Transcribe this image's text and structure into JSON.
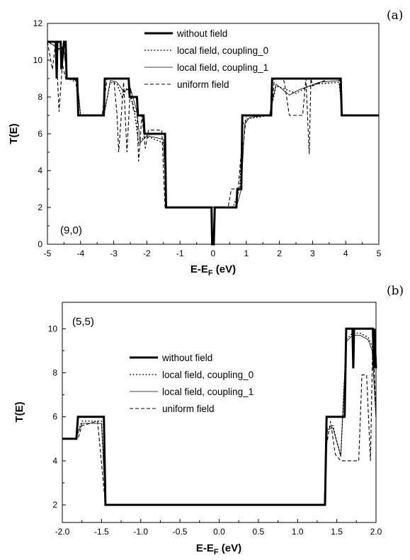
{
  "chart_data": [
    {
      "type": "line",
      "panel_label": "(a)",
      "annotation": "(9,0)",
      "xlabel": "E-E",
      "xlabel_sub": "F",
      "xlabel_unit": " (eV)",
      "ylabel": "T(E)",
      "xlim": [
        -5,
        5
      ],
      "ylim": [
        0,
        12
      ],
      "xticks": [
        -5,
        -4,
        -3,
        -2,
        -1,
        0,
        1,
        2,
        3,
        4,
        5
      ],
      "xtick_labels": [
        "-5",
        "-4",
        "-3",
        "-2",
        "-1",
        "0",
        "1",
        "2",
        "3",
        "4",
        "5"
      ],
      "yticks": [
        0,
        2,
        4,
        6,
        8,
        10,
        12
      ],
      "ytick_labels": [
        "0",
        "2",
        "4",
        "6",
        "8",
        "10",
        "12"
      ],
      "legend": "top-center",
      "series": [
        {
          "name": "without field",
          "style": "thick",
          "x": [
            -5,
            -4.75,
            -4.72,
            -4.7,
            -4.6,
            -4.58,
            -4.5,
            -4.45,
            -4.42,
            -4.1,
            -4.07,
            -3.3,
            -3.27,
            -2.55,
            -2.52,
            -2.3,
            -2.27,
            -2.1,
            -2.07,
            -1.45,
            -1.42,
            -0.05,
            -0.03,
            0.0,
            0.02,
            0.05,
            0.7,
            0.73,
            0.85,
            0.88,
            1.75,
            1.78,
            3.85,
            3.88,
            5
          ],
          "y": [
            11,
            11,
            9,
            11,
            11,
            9.5,
            11,
            11,
            9,
            9,
            7,
            7,
            9,
            9,
            8,
            8,
            7,
            7,
            6,
            6,
            2,
            2,
            0,
            0,
            0,
            2,
            2,
            3,
            3,
            7,
            7,
            9,
            9,
            7,
            7
          ]
        },
        {
          "name": "local field, coupling_0",
          "style": "dotted",
          "x": [
            -5,
            -4.8,
            -4.7,
            -4.6,
            -4.5,
            -4.4,
            -4.1,
            -4.0,
            -3.3,
            -3.1,
            -2.9,
            -2.75,
            -2.6,
            -2.4,
            -2.25,
            -2.1,
            -1.9,
            -1.5,
            -1.4,
            -0.05,
            0.05,
            0.6,
            0.8,
            0.9,
            1.0,
            1.7,
            1.9,
            2.2,
            2.5,
            2.8,
            3.1,
            3.8,
            3.9,
            5
          ],
          "y": [
            11,
            10.8,
            10.5,
            10.8,
            10.5,
            9,
            8.8,
            7,
            7,
            8.8,
            8.7,
            8,
            8.5,
            7.5,
            5.5,
            5.8,
            5.8,
            5.5,
            2,
            2,
            2,
            2,
            3,
            6.5,
            6.8,
            7,
            8.6,
            8.4,
            8.2,
            8.5,
            8.7,
            8.8,
            7,
            7
          ]
        },
        {
          "name": "local field, coupling_1",
          "style": "thin",
          "x": [
            -5,
            -4.8,
            -4.7,
            -4.6,
            -4.5,
            -4.4,
            -4.1,
            -4.0,
            -3.3,
            -3.1,
            -2.9,
            -2.7,
            -2.5,
            -2.3,
            -2.2,
            -2.0,
            -1.5,
            -1.4,
            -0.05,
            0.05,
            0.7,
            0.85,
            0.95,
            1.1,
            1.7,
            1.9,
            2.3,
            2.6,
            2.9,
            3.2,
            3.85,
            3.9,
            5
          ],
          "y": [
            11,
            10.8,
            10.5,
            10.7,
            10.5,
            9,
            8.9,
            7,
            7,
            8.9,
            8.8,
            8.3,
            8.5,
            7.2,
            5.5,
            5.9,
            5.7,
            2,
            2,
            2,
            2,
            3,
            6.5,
            6.9,
            7,
            8.7,
            8.1,
            8.4,
            8.6,
            8.8,
            8.9,
            7,
            7
          ]
        },
        {
          "name": "uniform field",
          "style": "dashed",
          "x": [
            -5,
            -4.85,
            -4.75,
            -4.65,
            -4.55,
            -4.45,
            -4.35,
            -4.15,
            -4.05,
            -3.35,
            -3.2,
            -3.0,
            -2.9,
            -2.85,
            -2.7,
            -2.6,
            -2.5,
            -2.4,
            -2.3,
            -2.25,
            -2.15,
            -2.05,
            -1.95,
            -1.55,
            -1.45,
            -0.05,
            0.05,
            0.45,
            0.55,
            0.75,
            0.85,
            0.9,
            1.0,
            1.75,
            1.85,
            2.1,
            2.15,
            2.3,
            2.4,
            2.7,
            2.8,
            2.9,
            2.95,
            3.0,
            3.5,
            3.8,
            3.9,
            5
          ],
          "y": [
            11,
            9.5,
            11,
            7.2,
            9.8,
            9,
            9,
            9,
            7,
            7,
            9,
            9,
            7,
            5,
            8.8,
            5,
            8.5,
            7.2,
            7.2,
            4.5,
            7,
            5.2,
            6.2,
            6.2,
            2,
            2,
            2,
            2,
            3,
            3,
            5,
            5.2,
            7,
            7,
            9,
            9,
            8.8,
            7,
            7,
            7,
            9,
            4.9,
            9,
            8.6,
            9,
            9,
            7,
            7
          ]
        }
      ]
    },
    {
      "type": "line",
      "panel_label": "(b)",
      "annotation": "(5,5)",
      "xlabel": "E-E",
      "xlabel_sub": "F",
      "xlabel_unit": " (eV)",
      "ylabel": "T(E)",
      "xlim": [
        -2.0,
        2.0
      ],
      "ylim": [
        1.2,
        11.2
      ],
      "xticks": [
        -2.0,
        -1.5,
        -1.0,
        -0.5,
        0.0,
        0.5,
        1.0,
        1.5,
        2.0
      ],
      "xtick_labels": [
        "-2.0",
        "-1.5",
        "-1.0",
        "-0.5",
        "0.0",
        "0.5",
        "1.0",
        "1.5",
        "2.0"
      ],
      "yticks": [
        2,
        4,
        6,
        8,
        10
      ],
      "ytick_labels": [
        "2",
        "4",
        "6",
        "8",
        "10"
      ],
      "legend": "center",
      "series": [
        {
          "name": "without field",
          "style": "thick",
          "x": [
            -2.0,
            -1.82,
            -1.8,
            -1.47,
            -1.45,
            1.35,
            1.37,
            1.6,
            1.62,
            1.7,
            1.71,
            1.72,
            1.73,
            1.96,
            1.97,
            1.98,
            1.99,
            2.0
          ],
          "y": [
            5,
            5,
            6,
            6,
            2,
            2,
            6,
            6,
            10,
            10,
            8.2,
            10,
            10,
            10,
            8.2,
            10,
            9,
            8.2
          ]
        },
        {
          "name": "local field, coupling_0",
          "style": "dotted",
          "x": [
            -2.0,
            -1.83,
            -1.75,
            -1.5,
            -1.45,
            1.34,
            1.38,
            1.45,
            1.55,
            1.62,
            1.7,
            1.8,
            1.9,
            1.95,
            2.0
          ],
          "y": [
            5,
            5,
            5.8,
            5.8,
            2,
            2,
            5.5,
            5.6,
            4.2,
            9.5,
            9.8,
            9.8,
            9.6,
            9.2,
            6
          ]
        },
        {
          "name": "local field, coupling_1",
          "style": "thin",
          "x": [
            -2.0,
            -1.83,
            -1.75,
            -1.5,
            -1.45,
            1.34,
            1.38,
            1.45,
            1.55,
            1.62,
            1.7,
            1.8,
            1.9,
            1.95,
            2.0
          ],
          "y": [
            5,
            5,
            5.7,
            5.7,
            2,
            2,
            5.4,
            5.5,
            4.2,
            9.4,
            9.7,
            9.7,
            9.5,
            9.0,
            6
          ]
        },
        {
          "name": "uniform field",
          "style": "dashed",
          "x": [
            -2.0,
            -1.8,
            -1.75,
            -1.55,
            -1.45,
            1.34,
            1.36,
            1.42,
            1.48,
            1.55,
            1.7,
            1.78,
            1.82,
            1.88,
            1.93,
            1.96,
            2.0
          ],
          "y": [
            5,
            5,
            5.6,
            5.8,
            2,
            2,
            4.5,
            5.8,
            4.3,
            4,
            4,
            4,
            7.9,
            7.9,
            4,
            9.8,
            6
          ]
        }
      ]
    }
  ]
}
